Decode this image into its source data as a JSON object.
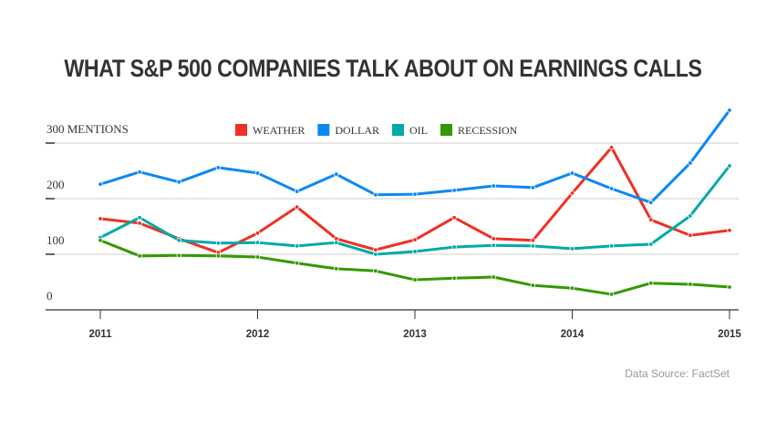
{
  "chart_data": {
    "type": "line",
    "title": "WHAT S&P 500 COMPANIES TALK ABOUT ON EARNINGS CALLS",
    "ylabel_unit": "MENTIONS",
    "ylim": [
      0,
      300
    ],
    "yticks": [
      0,
      100,
      200,
      300
    ],
    "xticks": [
      "2011",
      "2012",
      "2013",
      "2014",
      "2015"
    ],
    "xlim": [
      2011,
      2015
    ],
    "x": [
      2011.0,
      2011.25,
      2011.5,
      2011.75,
      2012.0,
      2012.25,
      2012.5,
      2012.75,
      2013.0,
      2013.25,
      2013.5,
      2013.75,
      2014.0,
      2014.25,
      2014.5,
      2014.75,
      2015.0
    ],
    "grid": "horizontal",
    "legend_position": "top",
    "series": [
      {
        "name": "WEATHER",
        "color": "#ee3124",
        "values": [
          164,
          156,
          128,
          103,
          138,
          185,
          128,
          108,
          126,
          166,
          128,
          125,
          210,
          292,
          162,
          134,
          143
        ]
      },
      {
        "name": "DOLLAR",
        "color": "#0a88f5",
        "values": [
          226,
          248,
          230,
          256,
          246,
          213,
          244,
          207,
          208,
          215,
          223,
          220,
          246,
          218,
          193,
          264,
          359
        ]
      },
      {
        "name": "OIL",
        "color": "#00a9a9",
        "values": [
          130,
          166,
          125,
          120,
          121,
          115,
          121,
          100,
          105,
          113,
          116,
          115,
          110,
          115,
          118,
          169,
          259
        ]
      },
      {
        "name": "RECESSION",
        "color": "#339900",
        "values": [
          125,
          97,
          98,
          97,
          95,
          84,
          74,
          70,
          54,
          57,
          59,
          44,
          39,
          28,
          48,
          46,
          41
        ]
      }
    ],
    "source": "Data Source: FactSet"
  }
}
